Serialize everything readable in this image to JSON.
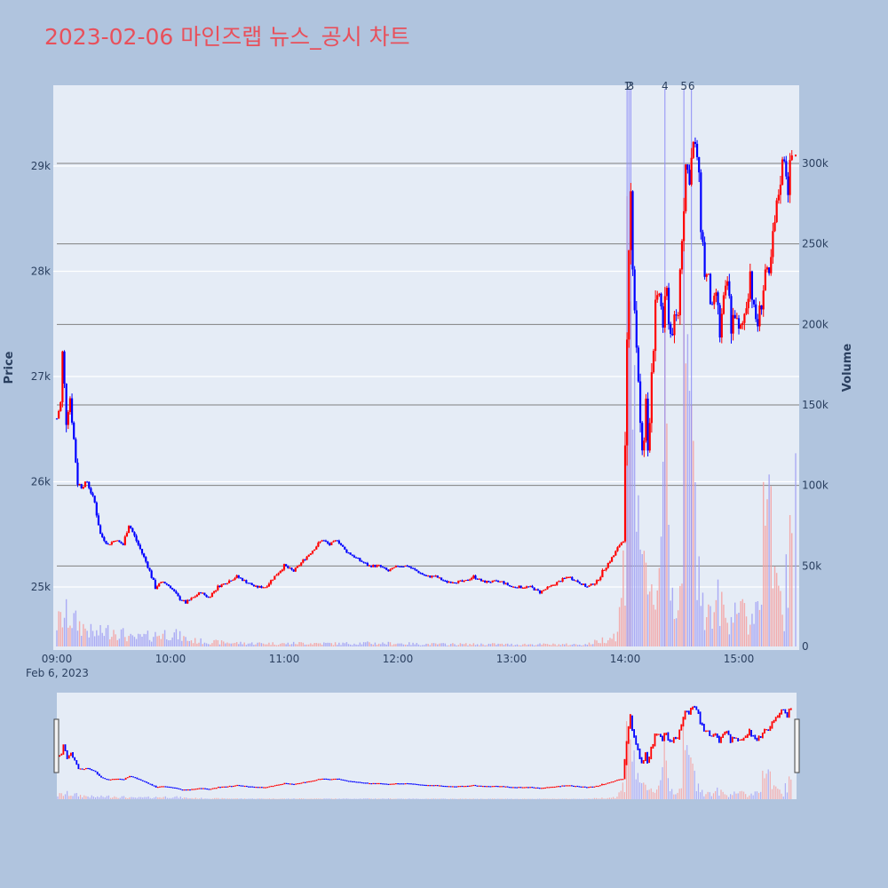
{
  "colors": {
    "paper": "#b0c4de",
    "plot_bg": "#e5ecf6",
    "up": "#ff0000",
    "down": "#0000ff",
    "vol_up": "#f4a3a3",
    "vol_down": "#a3a3f4",
    "title": "#e8505b",
    "text": "#2a3f5f",
    "hline": "#808080",
    "vline": "#8f8ff6"
  },
  "chart_data": {
    "type": "candlestick",
    "title": "2023-02-06 마인즈랩 뉴스_공시 차트",
    "y_left_label": "Price",
    "y_right_label": "Volume",
    "x_date_label": "Feb 6, 2023",
    "price_range": [
      24400,
      29750
    ],
    "volume_range": [
      0,
      350000
    ],
    "time_range_minutes": [
      540,
      930
    ],
    "price_ticks": [
      {
        "value": 25000,
        "label": "25k"
      },
      {
        "value": 26000,
        "label": "26k"
      },
      {
        "value": 27000,
        "label": "27k"
      },
      {
        "value": 28000,
        "label": "28k"
      },
      {
        "value": 29000,
        "label": "29k"
      }
    ],
    "volume_ticks": [
      {
        "value": 0,
        "label": "0"
      },
      {
        "value": 50000,
        "label": "50k"
      },
      {
        "value": 100000,
        "label": "100k"
      },
      {
        "value": 150000,
        "label": "150k"
      },
      {
        "value": 200000,
        "label": "200k"
      },
      {
        "value": 250000,
        "label": "250k"
      },
      {
        "value": 300000,
        "label": "300k"
      }
    ],
    "time_ticks": [
      {
        "minute": 540,
        "label": "09:00"
      },
      {
        "minute": 600,
        "label": "10:00"
      },
      {
        "minute": 660,
        "label": "11:00"
      },
      {
        "minute": 720,
        "label": "12:00"
      },
      {
        "minute": 780,
        "label": "13:00"
      },
      {
        "minute": 840,
        "label": "14:00"
      },
      {
        "minute": 900,
        "label": "15:00"
      }
    ],
    "volume_levels": [
      50000,
      100000,
      150000,
      200000,
      250000,
      300000
    ],
    "annotations": [
      {
        "label": "1",
        "minute": 841
      },
      {
        "label": "2",
        "minute": 842
      },
      {
        "label": "3",
        "minute": 843
      },
      {
        "label": "4",
        "minute": 861
      },
      {
        "label": "5",
        "minute": 871
      },
      {
        "label": "6",
        "minute": 875
      }
    ],
    "close_points": [
      [
        540,
        26600
      ],
      [
        542,
        26750
      ],
      [
        543,
        27200
      ],
      [
        545,
        26600
      ],
      [
        547,
        26800
      ],
      [
        549,
        26400
      ],
      [
        551,
        26000
      ],
      [
        553,
        25950
      ],
      [
        556,
        26000
      ],
      [
        560,
        25800
      ],
      [
        563,
        25500
      ],
      [
        567,
        25400
      ],
      [
        571,
        25450
      ],
      [
        575,
        25400
      ],
      [
        578,
        25600
      ],
      [
        583,
        25400
      ],
      [
        588,
        25200
      ],
      [
        592,
        25000
      ],
      [
        596,
        25050
      ],
      [
        600,
        25000
      ],
      [
        604,
        24900
      ],
      [
        608,
        24850
      ],
      [
        612,
        24900
      ],
      [
        616,
        24950
      ],
      [
        620,
        24900
      ],
      [
        625,
        25000
      ],
      [
        630,
        25050
      ],
      [
        635,
        25100
      ],
      [
        640,
        25050
      ],
      [
        645,
        25000
      ],
      [
        650,
        25000
      ],
      [
        655,
        25100
      ],
      [
        660,
        25200
      ],
      [
        665,
        25150
      ],
      [
        670,
        25250
      ],
      [
        675,
        25350
      ],
      [
        680,
        25450
      ],
      [
        684,
        25400
      ],
      [
        688,
        25450
      ],
      [
        692,
        25350
      ],
      [
        696,
        25300
      ],
      [
        700,
        25250
      ],
      [
        705,
        25200
      ],
      [
        710,
        25200
      ],
      [
        715,
        25150
      ],
      [
        720,
        25200
      ],
      [
        725,
        25200
      ],
      [
        730,
        25150
      ],
      [
        735,
        25100
      ],
      [
        740,
        25100
      ],
      [
        745,
        25050
      ],
      [
        750,
        25050
      ],
      [
        755,
        25050
      ],
      [
        760,
        25100
      ],
      [
        765,
        25050
      ],
      [
        770,
        25050
      ],
      [
        775,
        25050
      ],
      [
        780,
        25000
      ],
      [
        785,
        25000
      ],
      [
        790,
        25000
      ],
      [
        795,
        24950
      ],
      [
        800,
        25000
      ],
      [
        805,
        25050
      ],
      [
        810,
        25100
      ],
      [
        815,
        25050
      ],
      [
        820,
        25000
      ],
      [
        825,
        25050
      ],
      [
        830,
        25200
      ],
      [
        834,
        25300
      ],
      [
        837,
        25400
      ],
      [
        839,
        25450
      ],
      [
        840,
        26200
      ],
      [
        841,
        27100
      ],
      [
        842,
        28000
      ],
      [
        843,
        28700
      ],
      [
        844,
        28200
      ],
      [
        845,
        27700
      ],
      [
        846,
        27300
      ],
      [
        847,
        27000
      ],
      [
        848,
        26500
      ],
      [
        849,
        26200
      ],
      [
        850,
        26400
      ],
      [
        851,
        26700
      ],
      [
        852,
        26300
      ],
      [
        854,
        27100
      ],
      [
        856,
        27600
      ],
      [
        858,
        27800
      ],
      [
        860,
        27500
      ],
      [
        862,
        27800
      ],
      [
        864,
        27400
      ],
      [
        866,
        27500
      ],
      [
        868,
        27600
      ],
      [
        870,
        28400
      ],
      [
        872,
        29000
      ],
      [
        874,
        28900
      ],
      [
        876,
        29200
      ],
      [
        878,
        29100
      ],
      [
        880,
        28500
      ],
      [
        882,
        28000
      ],
      [
        884,
        27900
      ],
      [
        886,
        27600
      ],
      [
        888,
        27800
      ],
      [
        890,
        27400
      ],
      [
        892,
        27700
      ],
      [
        894,
        27900
      ],
      [
        896,
        27500
      ],
      [
        898,
        27600
      ],
      [
        900,
        27400
      ],
      [
        902,
        27500
      ],
      [
        904,
        27700
      ],
      [
        906,
        28000
      ],
      [
        908,
        27600
      ],
      [
        910,
        27500
      ],
      [
        912,
        27700
      ],
      [
        914,
        28000
      ],
      [
        916,
        27900
      ],
      [
        918,
        28300
      ],
      [
        920,
        28600
      ],
      [
        922,
        28900
      ],
      [
        924,
        29100
      ],
      [
        926,
        28800
      ],
      [
        928,
        29100
      ]
    ],
    "volume_points": [
      [
        540,
        15000
      ],
      [
        545,
        20000
      ],
      [
        552,
        14000
      ],
      [
        560,
        8000
      ],
      [
        570,
        11000
      ],
      [
        580,
        5000
      ],
      [
        590,
        7000
      ],
      [
        600,
        9000
      ],
      [
        610,
        4000
      ],
      [
        620,
        3000
      ],
      [
        630,
        2500
      ],
      [
        640,
        2000
      ],
      [
        650,
        2000
      ],
      [
        660,
        1800
      ],
      [
        670,
        2200
      ],
      [
        680,
        2000
      ],
      [
        690,
        1800
      ],
      [
        700,
        2200
      ],
      [
        710,
        2000
      ],
      [
        720,
        2000
      ],
      [
        730,
        1600
      ],
      [
        740,
        1500
      ],
      [
        750,
        1500
      ],
      [
        760,
        1400
      ],
      [
        770,
        1500
      ],
      [
        780,
        1300
      ],
      [
        790,
        1400
      ],
      [
        800,
        1300
      ],
      [
        810,
        1300
      ],
      [
        820,
        1400
      ],
      [
        830,
        5000
      ],
      [
        836,
        8000
      ],
      [
        840,
        60000
      ],
      [
        841,
        340000
      ],
      [
        842,
        320000
      ],
      [
        843,
        290000
      ],
      [
        844,
        140000
      ],
      [
        846,
        110000
      ],
      [
        848,
        90000
      ],
      [
        850,
        40000
      ],
      [
        852,
        30000
      ],
      [
        855,
        30000
      ],
      [
        858,
        50000
      ],
      [
        861,
        200000
      ],
      [
        864,
        40000
      ],
      [
        867,
        25000
      ],
      [
        870,
        60000
      ],
      [
        871,
        180000
      ],
      [
        873,
        150000
      ],
      [
        875,
        140000
      ],
      [
        877,
        80000
      ],
      [
        880,
        45000
      ],
      [
        882,
        25000
      ],
      [
        885,
        20000
      ],
      [
        888,
        30000
      ],
      [
        891,
        25000
      ],
      [
        894,
        15000
      ],
      [
        898,
        30000
      ],
      [
        902,
        20000
      ],
      [
        906,
        15000
      ],
      [
        910,
        30000
      ],
      [
        914,
        90000
      ],
      [
        916,
        120000
      ],
      [
        918,
        40000
      ],
      [
        921,
        30000
      ],
      [
        924,
        20000
      ],
      [
        926,
        60000
      ],
      [
        928,
        50000
      ]
    ]
  }
}
